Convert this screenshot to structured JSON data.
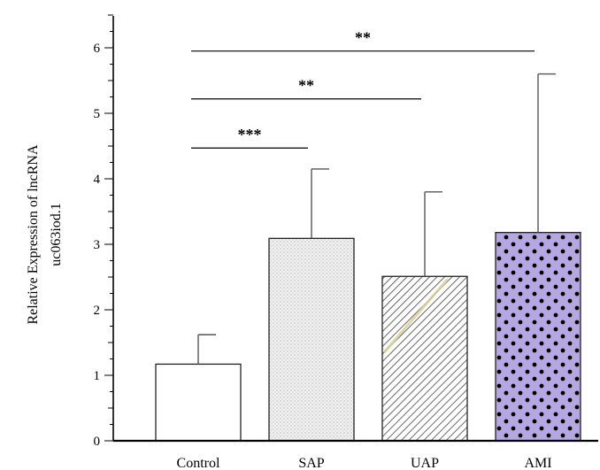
{
  "chart_data": {
    "type": "bar",
    "title": "",
    "xlabel": "",
    "ylabel": [
      "Relative Expression of lncRNA",
      "uc063iod.1"
    ],
    "categories": [
      "Control",
      "SAP",
      "UAP",
      "AMI"
    ],
    "values": [
      1.17,
      3.09,
      2.51,
      3.18
    ],
    "error_upper": [
      1.62,
      4.15,
      3.8,
      5.6
    ],
    "ylim": [
      0,
      6.5
    ],
    "yticks": [
      0,
      1,
      2,
      3,
      4,
      5,
      6
    ],
    "grid": false,
    "bar_styles": [
      {
        "fill": "#ffffff",
        "pattern": "none"
      },
      {
        "fill": "#eeeeee",
        "pattern": "dots-fine"
      },
      {
        "fill": "#ffffff",
        "pattern": "diagonal-hatch"
      },
      {
        "fill": "#b6a7e2",
        "pattern": "polka-dots"
      }
    ],
    "significance": [
      {
        "from": 0,
        "to": 1,
        "label": "***",
        "y": 4.47
      },
      {
        "from": 0,
        "to": 2,
        "label": "**",
        "y": 5.22
      },
      {
        "from": 0,
        "to": 3,
        "label": "**",
        "y": 5.95
      }
    ]
  }
}
